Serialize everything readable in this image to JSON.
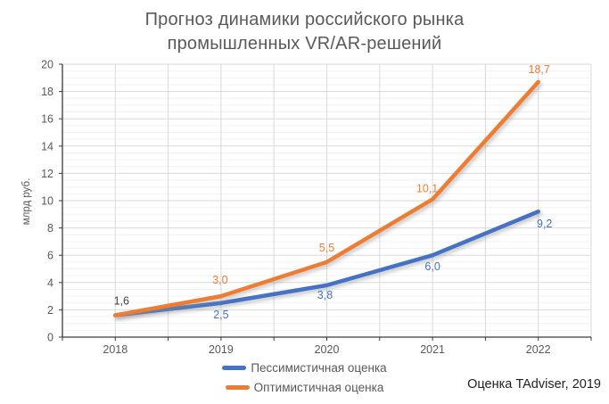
{
  "title": {
    "line1": "Прогноз динамики российского рынка",
    "line2": "промышленных VR/AR-решений"
  },
  "source_note": "Оценка TAdviser, 2019",
  "colors": {
    "pessimistic": "#4472C4",
    "optimistic": "#ED7D31",
    "title_text": "#595959",
    "axis_text": "#595959",
    "axis_line": "#3a3a3a",
    "grid_major": "#d9d9d9",
    "grid_minor": "#f2f2f2",
    "dark_label": "#3f3f3f",
    "background": "#ffffff"
  },
  "chart_data": {
    "type": "line",
    "title": "Прогноз динамики российского рынка промышленных VR/AR-решений",
    "categories": [
      "2018",
      "2019",
      "2020",
      "2021",
      "2022"
    ],
    "series": [
      {
        "name": "Пессимистичная оценка",
        "color": "#4472C4",
        "values": [
          1.6,
          2.5,
          3.8,
          6.0,
          9.2
        ],
        "point_labels": [
          "",
          "2,5",
          "3,8",
          "6,0",
          "9,2"
        ]
      },
      {
        "name": "Оптимистичная оценка",
        "color": "#ED7D31",
        "values": [
          1.6,
          3.0,
          5.5,
          10.1,
          18.7
        ],
        "point_labels": [
          "1,6",
          "3,0",
          "5,5",
          "10,1",
          "18,7"
        ]
      }
    ],
    "xlabel": "",
    "ylabel": "млрд руб.",
    "y_axis": {
      "min": 0,
      "max": 20,
      "major_step": 2,
      "minor_step": 0.5
    },
    "y_tick_labels": [
      "0",
      "2",
      "4",
      "6",
      "8",
      "10",
      "12",
      "14",
      "16",
      "18",
      "20"
    ],
    "grid": true,
    "legend_position": "bottom",
    "decimal_separator": ","
  }
}
